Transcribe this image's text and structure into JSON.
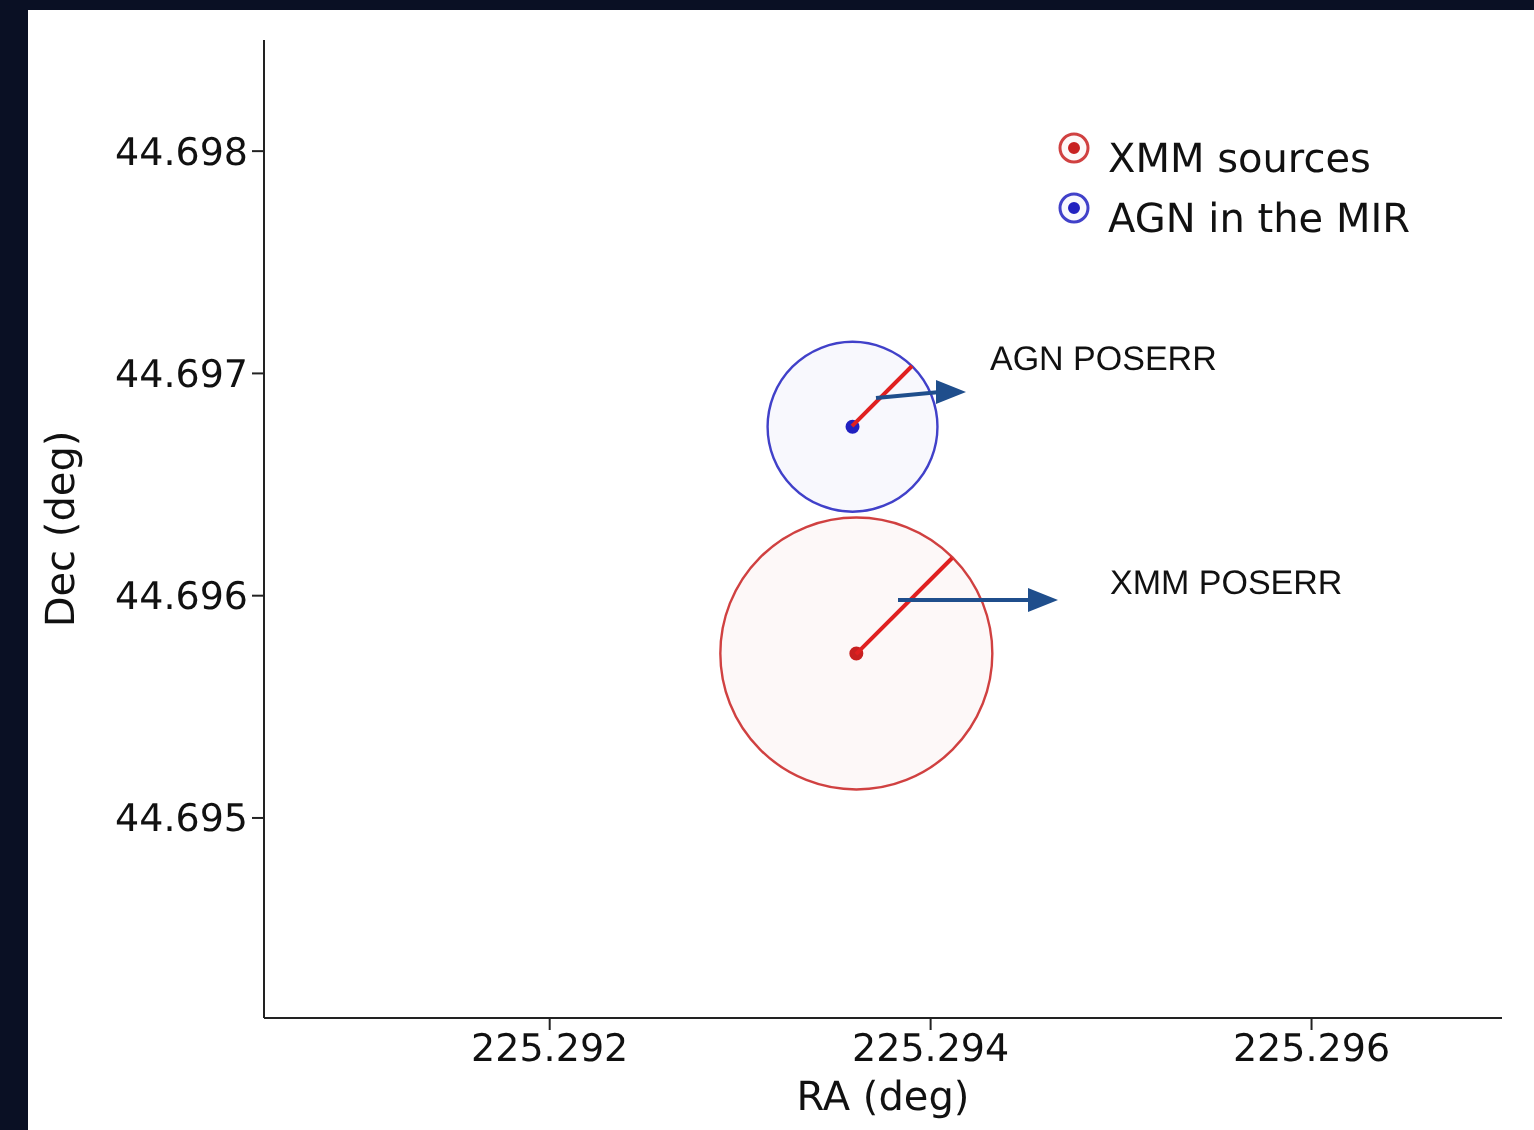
{
  "chart_data": {
    "type": "bubble",
    "xlabel": "RA (deg)",
    "ylabel": "Dec (deg)",
    "series": [
      {
        "name": "XMM sources",
        "color": "#c82020",
        "x": [
          225.29361
        ],
        "values": [
          44.69574
        ],
        "sizes": [
          1
        ]
      },
      {
        "name": "AGN in the MIR",
        "color": "#2020c0",
        "x": [
          225.29359
        ],
        "values": [
          44.69676
        ],
        "sizes": [
          0.39
        ]
      }
    ],
    "xlim": [
      225.2905,
      225.297
    ],
    "xticks": [
      225.292,
      225.294,
      225.296
    ],
    "ylim": [
      44.6941,
      44.6985
    ],
    "yticks": [
      44.695,
      44.696,
      44.697,
      44.698
    ],
    "grid": false,
    "legend": "top right",
    "marker": "circle",
    "annotations": [
      "AGN POSERR",
      "XMM POSERR"
    ]
  }
}
